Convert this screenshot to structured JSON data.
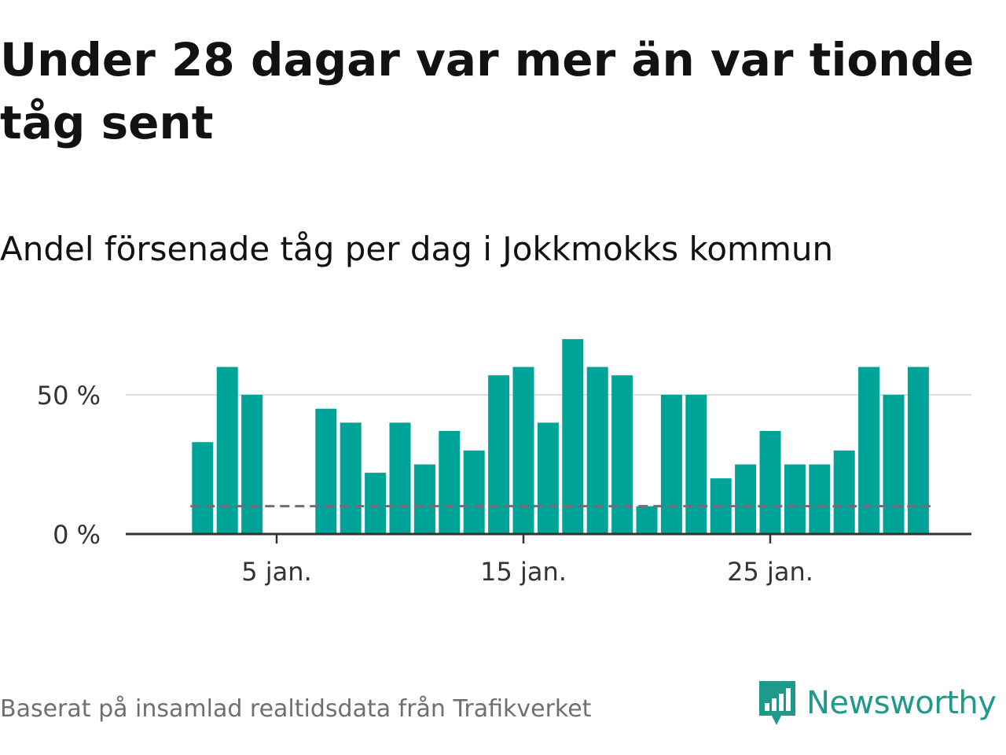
{
  "title": "Under 28 dagar var mer än var tionde tåg sent",
  "subtitle": "Andel försenade tåg per dag i Jokkmokks kommun",
  "source": "Baserat på insamlad realtidsdata från Trafikverket",
  "brand": {
    "name": "Newsworthy",
    "icon": "newsworthy-logo-icon",
    "color": "#1f9a8a"
  },
  "colors": {
    "bar": "#00a398",
    "reference_line": "#6f6f73",
    "grid": "#dddddd",
    "axis": "#333333"
  },
  "chart_data": {
    "type": "bar",
    "x_unit": "day of January",
    "days": [
      2,
      3,
      4,
      5,
      6,
      7,
      8,
      9,
      10,
      11,
      12,
      13,
      14,
      15,
      16,
      17,
      18,
      19,
      20,
      21,
      22,
      23,
      24,
      25,
      26,
      27,
      28,
      29,
      30,
      31,
      32
    ],
    "values": [
      33,
      60,
      50,
      0,
      0,
      45,
      40,
      22,
      40,
      25,
      37,
      30,
      57,
      60,
      40,
      70,
      60,
      57,
      10,
      50,
      50,
      20,
      25,
      37,
      25,
      25,
      30,
      60,
      50,
      60,
      null
    ],
    "reference_line": {
      "value": 10,
      "style": "dashed"
    },
    "ylim": [
      0,
      75
    ],
    "y_ticks": [
      {
        "value": 0,
        "label": "0 %"
      },
      {
        "value": 50,
        "label": "50 %"
      }
    ],
    "x_ticks": [
      {
        "day": 5,
        "label": "5 jan."
      },
      {
        "day": 15,
        "label": "15 jan."
      },
      {
        "day": 25,
        "label": "25 jan."
      }
    ],
    "grid": true,
    "legend": "none"
  }
}
